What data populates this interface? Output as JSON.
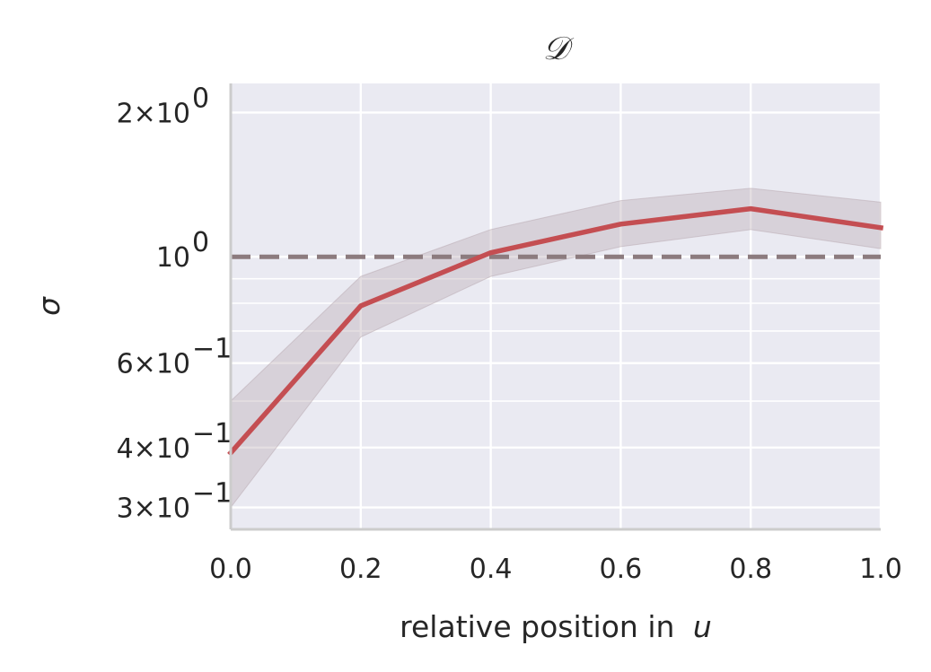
{
  "chart_data": {
    "type": "line",
    "title": "𝒟",
    "xlabel": "relative position in",
    "xlabel_var": "u",
    "ylabel": "σ",
    "xlim": [
      0.0,
      1.0
    ],
    "ylim": [
      0.27,
      2.3
    ],
    "yscale": "log",
    "grid": true,
    "x_ticks": [
      "0.0",
      "0.2",
      "0.4",
      "0.6",
      "0.8",
      "1.0"
    ],
    "x_tick_values": [
      0.0,
      0.2,
      0.4,
      0.6,
      0.8,
      1.0
    ],
    "y_ticks": [
      {
        "value": 2.0,
        "base": "2×10",
        "exp": "0"
      },
      {
        "value": 1.0,
        "base": "10",
        "exp": "0"
      },
      {
        "value": 0.6,
        "base": "6×10",
        "exp": "−1"
      },
      {
        "value": 0.4,
        "base": "4×10",
        "exp": "−1"
      },
      {
        "value": 0.3,
        "base": "3×10",
        "exp": "−1"
      }
    ],
    "y_minor_grid": [
      0.5,
      0.7,
      0.8,
      0.9
    ],
    "series": [
      {
        "x": [
          0.0,
          0.2,
          0.4,
          0.6,
          0.8,
          1.0
        ],
        "y": [
          0.39,
          0.79,
          1.02,
          1.17,
          1.26,
          1.15
        ],
        "y_lower": [
          0.3,
          0.68,
          0.91,
          1.05,
          1.14,
          1.04
        ],
        "y_upper": [
          0.5,
          0.91,
          1.14,
          1.31,
          1.39,
          1.3
        ],
        "color": "#c44e52",
        "band_color": "#b8a8b0"
      }
    ],
    "reference_line": {
      "y": 1.0,
      "style": "dashed",
      "color": "#8c7b7e"
    },
    "colors": {
      "background": "#eaeaf2",
      "grid": "#ffffff",
      "spine": "#cccccc"
    }
  }
}
